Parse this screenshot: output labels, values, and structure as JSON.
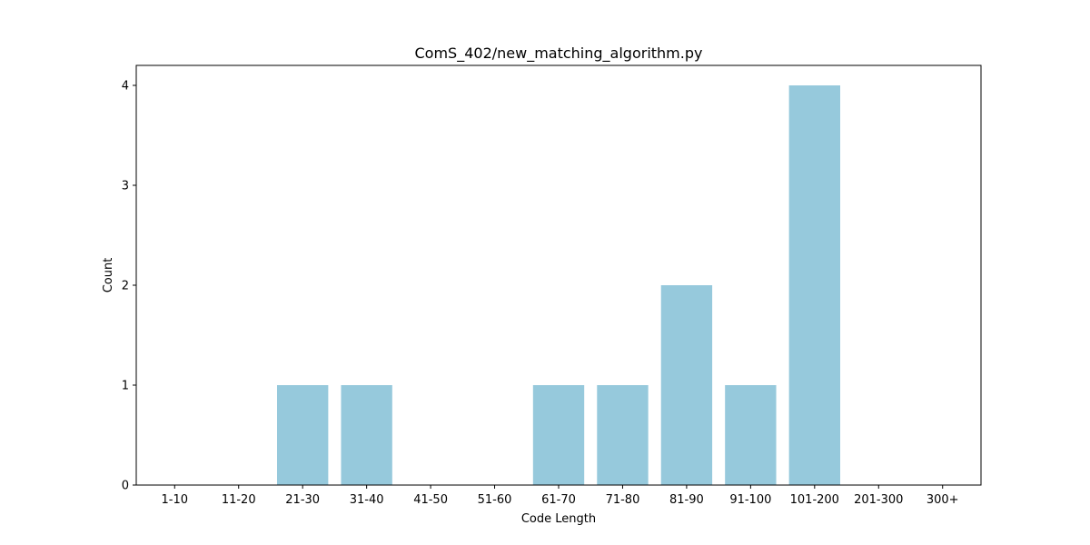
{
  "chart_data": {
    "type": "bar",
    "title": "ComS_402/new_matching_algorithm.py",
    "xlabel": "Code Length",
    "ylabel": "Count",
    "categories": [
      "1-10",
      "11-20",
      "21-30",
      "31-40",
      "41-50",
      "51-60",
      "61-70",
      "71-80",
      "81-90",
      "91-100",
      "101-200",
      "201-300",
      "300+"
    ],
    "values": [
      0,
      0,
      1,
      1,
      0,
      0,
      1,
      1,
      2,
      1,
      4,
      0,
      0
    ],
    "ylim": [
      0,
      4.2
    ],
    "yticks": [
      0,
      1,
      2,
      3,
      4
    ],
    "bar_color": "#96c9dc",
    "grid": false,
    "legend": "none"
  }
}
